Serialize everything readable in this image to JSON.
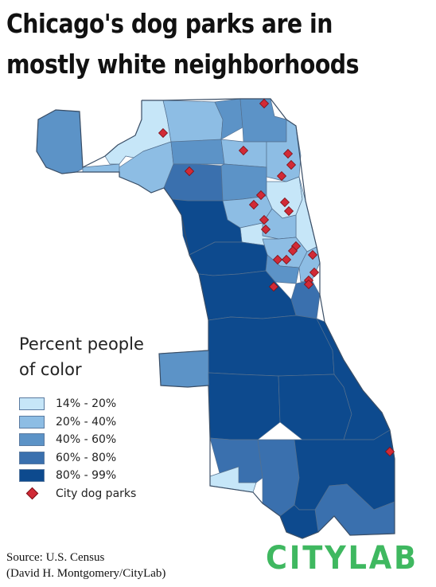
{
  "title": {
    "line1": "Chicago's dog parks are in",
    "line2": "mostly white neighborhoods"
  },
  "legend": {
    "title": "Percent people of color",
    "items": [
      {
        "label": "14% - 20%",
        "color": "#c6e6f8"
      },
      {
        "label": "20% - 40%",
        "color": "#8dbde4"
      },
      {
        "label": "40% - 60%",
        "color": "#5c93c7"
      },
      {
        "label": "60% - 80%",
        "color": "#3a70ae"
      },
      {
        "label": "80% - 99%",
        "color": "#0d4a8e"
      }
    ],
    "marker_label": "City dog parks",
    "marker_color": "#d12a36"
  },
  "source": {
    "line1": "Source: U.S. Census",
    "line2": "(David H. Montgomery/CityLab)"
  },
  "logo": {
    "text": "CITYLAB",
    "color": "#3fb860"
  },
  "dog_park_icon": "diamond-icon"
}
